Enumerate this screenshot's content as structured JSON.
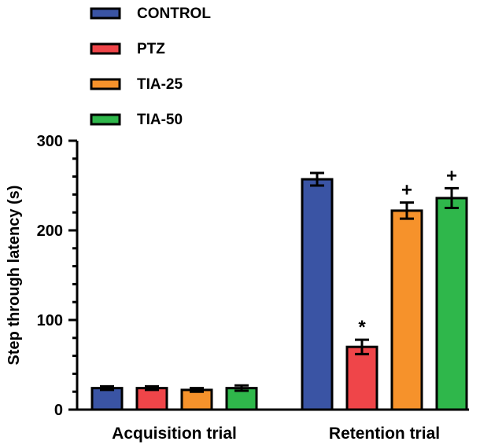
{
  "chart_data": {
    "type": "bar",
    "ylabel": "Step through latency (s)",
    "xlabel": "",
    "ylim": [
      0,
      300
    ],
    "yticks": [
      0,
      100,
      200,
      300
    ],
    "categories": [
      "Acquisition trial",
      "Retention trial"
    ],
    "legend_position": "top-left",
    "series": [
      {
        "name": "CONTROL",
        "color": "#3a54a4",
        "values": [
          24,
          257
        ],
        "errors": [
          2,
          7
        ],
        "annotations": [
          "",
          ""
        ]
      },
      {
        "name": "PTZ",
        "color": "#ef4549",
        "values": [
          24,
          70
        ],
        "errors": [
          2,
          8
        ],
        "annotations": [
          "",
          "*"
        ]
      },
      {
        "name": "TIA-25",
        "color": "#f6922b",
        "values": [
          22,
          222
        ],
        "errors": [
          2,
          9
        ],
        "annotations": [
          "",
          "+"
        ]
      },
      {
        "name": "TIA-50",
        "color": "#2fb74b",
        "values": [
          24,
          236
        ],
        "errors": [
          3,
          11
        ],
        "annotations": [
          "",
          "+"
        ]
      }
    ]
  }
}
